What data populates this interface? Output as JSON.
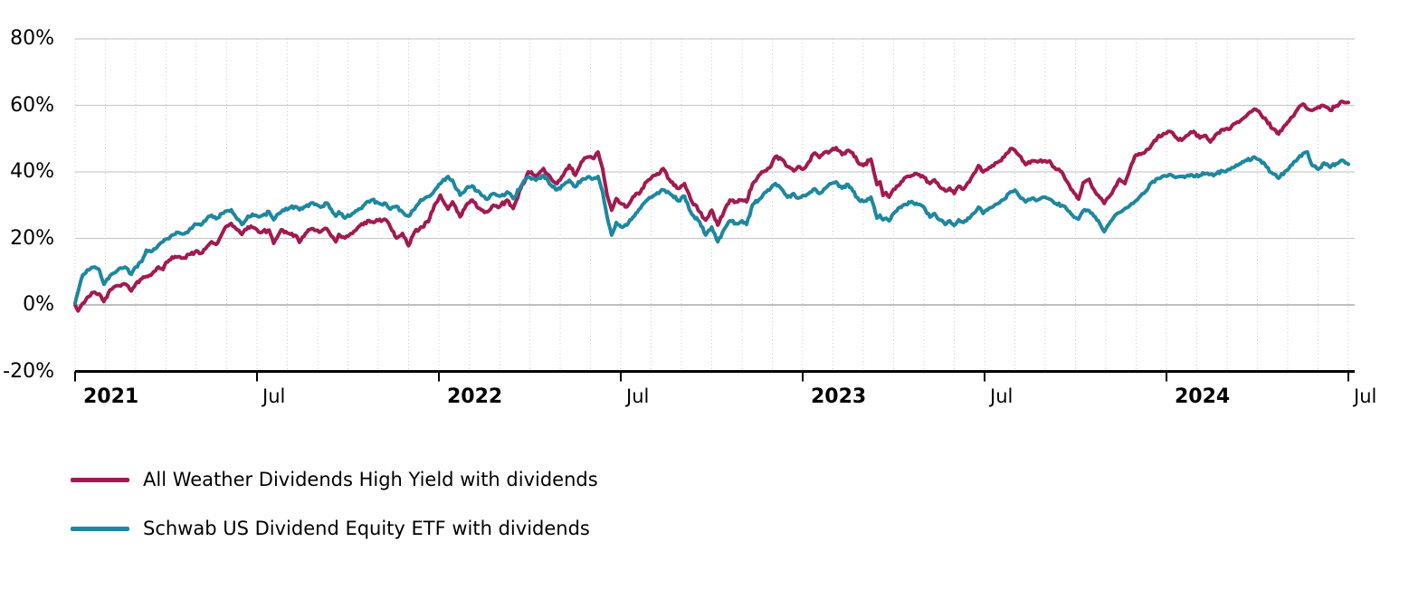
{
  "chart_data": {
    "type": "line",
    "x_encoding": "months_since_2021_01",
    "x_axis": {
      "min": 0,
      "max": 42,
      "ticks": [
        {
          "t": 0,
          "label": "2021",
          "bold": true
        },
        {
          "t": 6,
          "label": "Jul",
          "bold": false
        },
        {
          "t": 12,
          "label": "2022",
          "bold": true
        },
        {
          "t": 18,
          "label": "Jul",
          "bold": false
        },
        {
          "t": 24,
          "label": "2023",
          "bold": true
        },
        {
          "t": 30,
          "label": "Jul",
          "bold": false
        },
        {
          "t": 36,
          "label": "2024",
          "bold": true
        },
        {
          "t": 42,
          "label": "Jul",
          "bold": false
        }
      ]
    },
    "y_axis": {
      "min": -20,
      "max": 80,
      "step": 20,
      "ticks": [
        {
          "value": 80,
          "label": "80%"
        },
        {
          "value": 60,
          "label": "60%"
        },
        {
          "value": 40,
          "label": "40%"
        },
        {
          "value": 20,
          "label": "20%"
        },
        {
          "value": 0,
          "label": "0%"
        },
        {
          "value": -20,
          "label": "-20%"
        }
      ]
    },
    "grid": {
      "h_color": "#cccccc",
      "zero_color": "#999999",
      "v_dotted_color": "#cccccc",
      "axis_color": "#000000"
    },
    "x": [
      0,
      0.1,
      0.25,
      0.45,
      0.65,
      0.8,
      0.95,
      1.15,
      1.45,
      1.65,
      1.85,
      2.0,
      2.2,
      2.35,
      2.55,
      2.75,
      2.9,
      3.0,
      3.2,
      3.4,
      3.6,
      3.8,
      4.0,
      4.15,
      4.35,
      4.5,
      4.65,
      4.85,
      5.0,
      5.15,
      5.3,
      5.5,
      5.7,
      5.95,
      6.15,
      6.4,
      6.55,
      6.8,
      7.05,
      7.3,
      7.4,
      7.6,
      7.85,
      8.1,
      8.3,
      8.45,
      8.6,
      8.7,
      8.9,
      9.15,
      9.35,
      9.55,
      9.8,
      10.0,
      10.25,
      10.4,
      10.6,
      10.8,
      11.0,
      11.2,
      11.4,
      11.65,
      11.85,
      12.05,
      12.3,
      12.45,
      12.7,
      12.9,
      13.1,
      13.35,
      13.6,
      13.8,
      14.0,
      14.25,
      14.45,
      14.7,
      14.95,
      15.2,
      15.45,
      15.7,
      15.9,
      16.1,
      16.3,
      16.5,
      16.7,
      16.9,
      17.1,
      17.25,
      17.4,
      17.55,
      17.7,
      17.85,
      18.0,
      18.2,
      18.4,
      18.65,
      18.9,
      19.15,
      19.4,
      19.65,
      19.9,
      20.1,
      20.35,
      20.6,
      20.8,
      21.0,
      21.2,
      21.4,
      21.6,
      21.8,
      22.0,
      22.15,
      22.35,
      22.55,
      22.75,
      22.95,
      23.1,
      23.3,
      23.5,
      23.7,
      23.85,
      24.0,
      24.2,
      24.4,
      24.55,
      24.75,
      24.95,
      25.1,
      25.3,
      25.5,
      25.65,
      25.85,
      26.0,
      26.25,
      26.45,
      26.55,
      26.65,
      26.75,
      26.85,
      27.0,
      27.2,
      27.4,
      27.6,
      27.8,
      28.0,
      28.2,
      28.35,
      28.5,
      28.7,
      28.85,
      29.0,
      29.15,
      29.3,
      29.5,
      29.7,
      29.8,
      29.95,
      30.1,
      30.25,
      30.45,
      30.65,
      30.85,
      31.0,
      31.15,
      31.35,
      31.55,
      31.75,
      31.95,
      32.15,
      32.35,
      32.55,
      32.75,
      32.95,
      33.1,
      33.25,
      33.45,
      33.65,
      33.85,
      33.95,
      34.15,
      34.3,
      34.45,
      34.63,
      34.8,
      34.95,
      35.1,
      35.3,
      35.5,
      35.7,
      35.9,
      36.1,
      36.3,
      36.5,
      36.7,
      36.9,
      37.1,
      37.3,
      37.45,
      37.65,
      37.85,
      38.05,
      38.25,
      38.45,
      38.65,
      38.9,
      39.1,
      39.3,
      39.5,
      39.7,
      39.9,
      40.1,
      40.3,
      40.5,
      40.65,
      40.8,
      41.0,
      41.2,
      41.4,
      41.6,
      41.8,
      42.0
    ],
    "series": [
      {
        "name": "All Weather Dividends High Yield with dividends",
        "color": "#A11A50",
        "values": [
          0,
          -1.8,
          0.5,
          2.5,
          3.8,
          3.3,
          1.0,
          4.5,
          5.8,
          6.3,
          4.2,
          6.3,
          7.9,
          8.6,
          9.5,
          11.4,
          10.6,
          12.8,
          14.4,
          14.5,
          14.2,
          15.2,
          16.3,
          15.5,
          17.5,
          19.0,
          18.2,
          21.5,
          23.7,
          24.5,
          23.0,
          21.2,
          23.4,
          23.0,
          21.8,
          22.5,
          18.5,
          22.6,
          21.5,
          20.8,
          18.8,
          21.5,
          22.9,
          22.0,
          22.9,
          20.7,
          19.0,
          21.2,
          20.1,
          21.5,
          23.5,
          24.8,
          25.0,
          25.4,
          25.6,
          23.4,
          20.1,
          21.5,
          17.8,
          22.0,
          23.4,
          25.0,
          30.0,
          33.0,
          28.8,
          31.0,
          26.5,
          30.0,
          31.5,
          29.0,
          28.0,
          30.0,
          29.5,
          31.5,
          29.0,
          35.0,
          40.0,
          38.5,
          41.0,
          38.0,
          36.5,
          39.0,
          42.0,
          39.0,
          43.0,
          44.5,
          44.0,
          46.0,
          41.0,
          33.0,
          28.5,
          32.0,
          30.5,
          29.5,
          32.5,
          34.0,
          37.5,
          39.0,
          41.0,
          37.0,
          35.0,
          36.5,
          31.0,
          28.0,
          25.5,
          28.5,
          24.0,
          28.0,
          31.5,
          31.0,
          31.6,
          31.0,
          36.5,
          38.9,
          40.3,
          41.6,
          44.6,
          43.8,
          41.6,
          40.3,
          41.6,
          40.8,
          43.0,
          45.7,
          44.3,
          46.0,
          46.5,
          47.3,
          45.2,
          46.5,
          45.7,
          42.5,
          41.9,
          43.8,
          36.2,
          37.0,
          32.9,
          33.8,
          32.4,
          34.8,
          36.2,
          38.4,
          38.9,
          39.2,
          38.4,
          36.5,
          37.6,
          35.7,
          34.3,
          35.1,
          33.5,
          35.7,
          34.8,
          37.0,
          40.0,
          41.9,
          40.0,
          40.8,
          41.9,
          43.0,
          44.5,
          47.0,
          46.5,
          44.9,
          42.2,
          43.3,
          43.0,
          43.3,
          43.3,
          40.8,
          40.0,
          36.7,
          33.7,
          31.8,
          36.7,
          37.8,
          34.0,
          32.0,
          30.5,
          33.0,
          35.4,
          37.8,
          36.5,
          41.0,
          44.6,
          45.5,
          46.0,
          48.0,
          50.3,
          51.5,
          52.2,
          50.5,
          49.5,
          51.0,
          52.2,
          50.2,
          50.9,
          49.0,
          51.4,
          52.8,
          52.8,
          54.5,
          55.5,
          57.0,
          58.9,
          57.5,
          55.5,
          53.0,
          51.4,
          54.0,
          56.3,
          58.5,
          60.4,
          59.0,
          58.5,
          59.5,
          59.9,
          58.5,
          59.9,
          61.2,
          60.9
        ]
      },
      {
        "name": "Schwab US Dividend Equity ETF with dividends",
        "color": "#1E87A0",
        "values": [
          0.5,
          4.0,
          9.0,
          10.5,
          11.4,
          10.5,
          6.2,
          8.8,
          10.9,
          11.4,
          9.2,
          11.4,
          13.0,
          16.5,
          16.2,
          18.0,
          19.0,
          19.8,
          21.0,
          21.8,
          21.4,
          23.0,
          24.3,
          24.0,
          26.0,
          27.0,
          25.9,
          27.5,
          28.3,
          28.6,
          26.5,
          24.2,
          26.7,
          27.0,
          26.8,
          28.0,
          25.6,
          28.0,
          29.0,
          29.5,
          28.6,
          29.6,
          30.7,
          29.4,
          30.7,
          28.8,
          26.7,
          28.0,
          26.1,
          27.5,
          28.8,
          30.2,
          31.6,
          30.7,
          30.5,
          28.8,
          29.7,
          28.0,
          26.7,
          28.8,
          31.6,
          32.6,
          34.3,
          36.5,
          38.6,
          37.5,
          33.0,
          35.0,
          35.8,
          33.8,
          31.8,
          33.5,
          32.7,
          34.0,
          32.0,
          35.5,
          38.5,
          37.5,
          39.0,
          36.0,
          34.6,
          36.0,
          37.5,
          35.5,
          37.5,
          38.4,
          38.0,
          38.6,
          34.0,
          26.5,
          21.0,
          24.8,
          23.5,
          24.0,
          26.4,
          29.1,
          31.8,
          33.2,
          34.6,
          33.2,
          31.3,
          32.7,
          27.2,
          25.0,
          21.0,
          23.4,
          19.0,
          22.6,
          25.3,
          24.5,
          25.3,
          24.2,
          30.2,
          31.6,
          33.8,
          35.1,
          36.5,
          34.9,
          32.4,
          33.5,
          32.1,
          32.9,
          33.5,
          34.9,
          33.5,
          35.1,
          36.5,
          37.0,
          35.1,
          36.2,
          34.3,
          31.6,
          31.1,
          32.4,
          26.1,
          27.0,
          25.6,
          26.1,
          25.3,
          27.5,
          29.4,
          30.2,
          31.1,
          30.2,
          29.4,
          26.4,
          27.5,
          25.6,
          24.2,
          25.3,
          23.9,
          25.6,
          24.8,
          26.1,
          28.0,
          29.4,
          27.5,
          28.6,
          29.4,
          30.5,
          31.8,
          34.0,
          34.5,
          32.7,
          31.0,
          32.0,
          31.5,
          32.4,
          31.8,
          30.5,
          29.9,
          28.3,
          26.4,
          25.8,
          28.3,
          28.3,
          26.5,
          23.5,
          22.0,
          25.0,
          26.9,
          27.8,
          29.0,
          30.0,
          31.0,
          32.4,
          34.0,
          36.7,
          38.0,
          38.8,
          39.2,
          38.3,
          38.6,
          39.0,
          38.6,
          39.0,
          39.5,
          39.3,
          39.5,
          40.3,
          40.8,
          41.5,
          42.5,
          43.5,
          44.5,
          43.5,
          41.5,
          39.5,
          38.1,
          40.0,
          42.0,
          43.5,
          45.5,
          46.0,
          42.0,
          40.8,
          42.7,
          41.4,
          42.5,
          43.5,
          42.3
        ]
      }
    ]
  },
  "legend": {
    "items": [
      {
        "label": "All Weather Dividends High Yield with dividends",
        "color": "#A11A50"
      },
      {
        "label": "Schwab US Dividend Equity ETF with dividends",
        "color": "#1E87A0"
      }
    ]
  }
}
